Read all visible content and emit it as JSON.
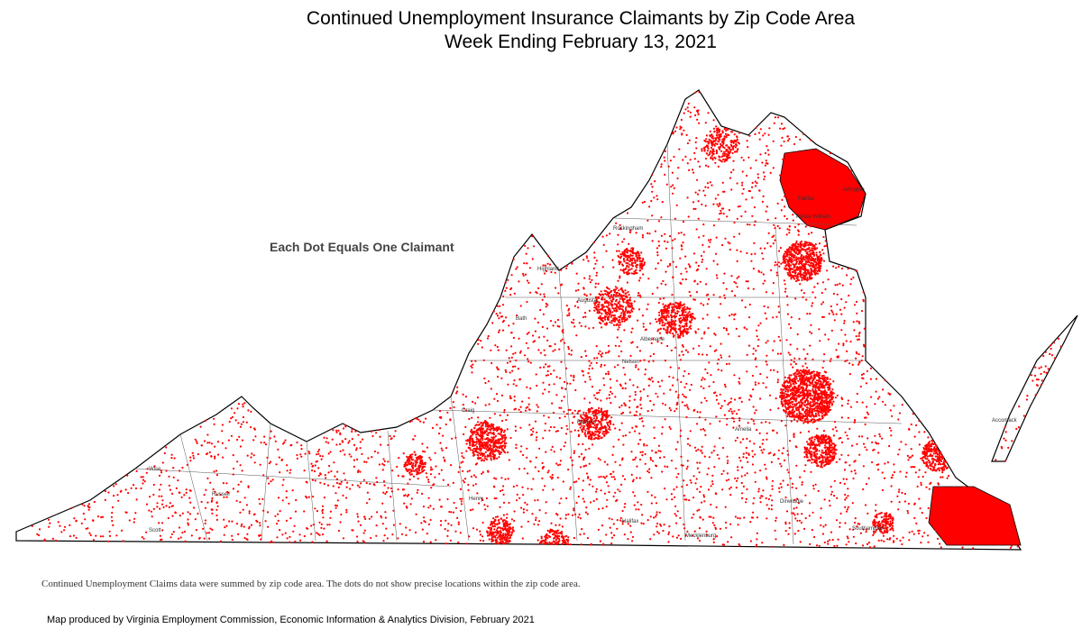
{
  "header": {
    "title_line1": "Continued Unemployment Insurance Claimants by Zip Code Area",
    "title_line2": "Week Ending February 13, 2021"
  },
  "map": {
    "legend_note": "Each Dot Equals One Claimant",
    "places": [
      "Highland",
      "Bath",
      "Craig",
      "Scott",
      "Russell",
      "Wise",
      "Prince William",
      "Fairfax",
      "Arlington",
      "Rockingham",
      "Augusta",
      "Albemarle",
      "Nelson",
      "Bedford",
      "Henry",
      "Halifax",
      "Mecklenburg",
      "Amelia",
      "Dinwiddie",
      "Southampton",
      "Accomack"
    ]
  },
  "footer": {
    "note": "Continued Unemployment Claims data were summed by zip code area. The dots do not show precise locations within the zip code area.",
    "credit": "Map produced by Virginia Employment Commission, Economic Information & Analytics Division,  February 2021"
  }
}
